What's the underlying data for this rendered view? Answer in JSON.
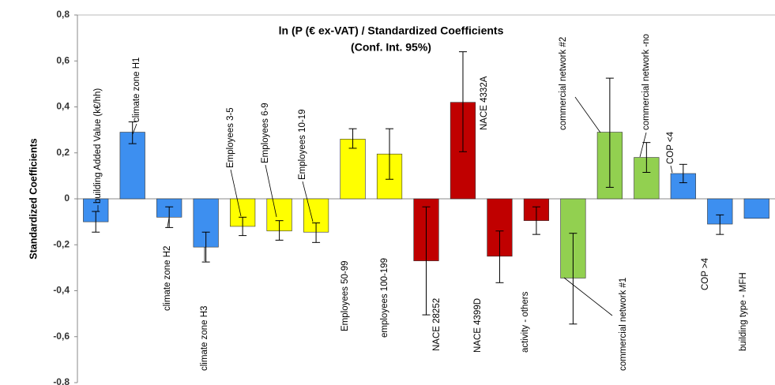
{
  "chart_data": {
    "type": "bar",
    "title": "ln (P (€ ex-VAT) / Standardized Coefficients",
    "subtitle": "(Conf. Int. 95%)",
    "y_label": "Standardized Coefficients",
    "categories": [
      "building Added Value (k€/hh)",
      "climate zone H1",
      "climate zone H2",
      "climate zone H3",
      "Employees 3-5",
      "Employees 6-9",
      "Employees 10-19",
      "Employees 50-99",
      "employees 100-199",
      "NACE 28252",
      "NACE 4332A",
      "NACE 4399D",
      "activity - others",
      "commercial network #1",
      "commercial network #2",
      "commercial network -no",
      "COP <4",
      "COP >4",
      "building type - MFH"
    ],
    "values": [
      -0.1,
      0.29,
      -0.08,
      -0.21,
      -0.12,
      -0.14,
      -0.145,
      0.26,
      0.195,
      -0.27,
      0.42,
      -0.25,
      -0.095,
      -0.345,
      0.29,
      0.18,
      0.11,
      -0.11,
      -0.085
    ],
    "ci_low": [
      -0.145,
      0.24,
      -0.125,
      -0.275,
      -0.16,
      -0.18,
      -0.19,
      0.22,
      0.085,
      -0.505,
      0.205,
      -0.365,
      -0.155,
      -0.545,
      0.05,
      0.115,
      0.07,
      -0.155,
      null
    ],
    "ci_high": [
      -0.055,
      0.335,
      -0.035,
      -0.145,
      -0.08,
      -0.095,
      -0.105,
      0.305,
      0.305,
      -0.035,
      0.64,
      -0.14,
      -0.035,
      -0.15,
      0.525,
      0.245,
      0.15,
      -0.07,
      null
    ],
    "colors": [
      "#3d8ff0",
      "#3d8ff0",
      "#3d8ff0",
      "#3d8ff0",
      "#ffff00",
      "#ffff00",
      "#ffff00",
      "#ffff00",
      "#ffff00",
      "#c00000",
      "#c00000",
      "#c00000",
      "#c00000",
      "#92d050",
      "#92d050",
      "#92d050",
      "#3d8ff0",
      "#3d8ff0",
      "#3d8ff0"
    ],
    "ylim": [
      -0.8,
      0.8
    ],
    "yticks": [
      {
        "value": -0.8,
        "label": "-0,8"
      },
      {
        "value": -0.6,
        "label": "-0,6"
      },
      {
        "value": -0.4,
        "label": "-0,4"
      },
      {
        "value": -0.2,
        "label": "-0,2"
      },
      0,
      {
        "value": 0.2,
        "label": "0,2"
      },
      {
        "value": 0.4,
        "label": "0,4"
      },
      {
        "value": 0.6,
        "label": "0,6"
      },
      {
        "value": 0.8,
        "label": "0,8"
      }
    ]
  }
}
